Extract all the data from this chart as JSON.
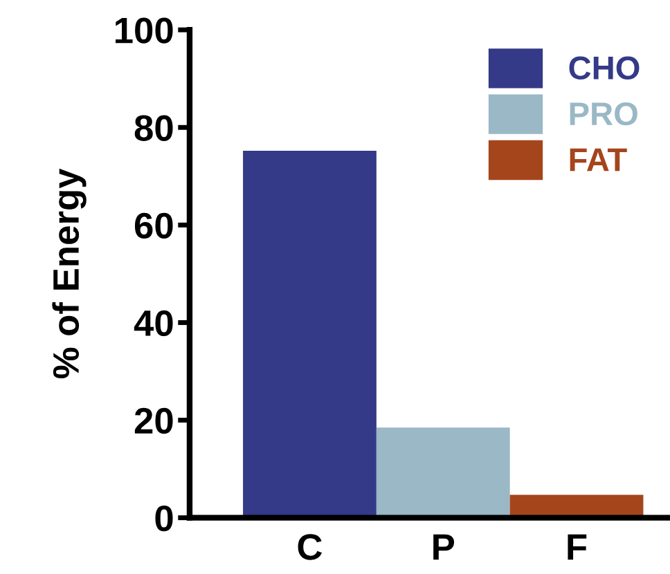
{
  "chart_data": {
    "type": "bar",
    "ylabel": "% of Energy",
    "categories": [
      "C",
      "P",
      "F"
    ],
    "series": [
      {
        "name": "CHO",
        "color": "#343a87",
        "values": [
          75.2,
          null,
          null
        ]
      },
      {
        "name": "PRO",
        "color": "#9ab8c6",
        "values": [
          null,
          18.5,
          null
        ]
      },
      {
        "name": "FAT",
        "color": "#a5451c",
        "values": [
          null,
          null,
          4.7
        ]
      }
    ],
    "ylim": [
      0,
      100
    ],
    "yticks": [
      0,
      20,
      40,
      60,
      80,
      100
    ],
    "grid": false,
    "legend": "top right"
  }
}
